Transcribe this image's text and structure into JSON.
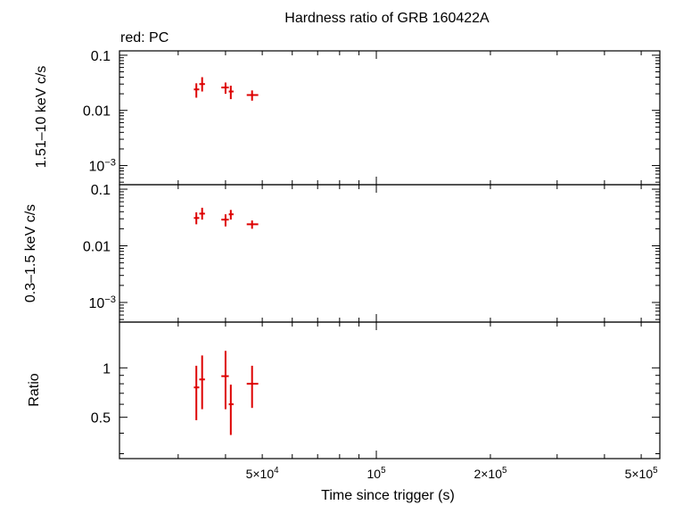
{
  "chart_data": {
    "type": "scatter",
    "title": "Hardness ratio of GRB 160422A",
    "legend": "red: PC",
    "xlabel": "Time since trigger (s)",
    "xscale": "log",
    "xlim": [
      21000,
      560000
    ],
    "x_ticks": [
      {
        "value": 50000,
        "mant": "5×10",
        "exp": "4"
      },
      {
        "value": 100000,
        "mant": "10",
        "exp": "5"
      },
      {
        "value": 200000,
        "mant": "2×10",
        "exp": "5"
      },
      {
        "value": 500000,
        "mant": "5×10",
        "exp": "5"
      }
    ],
    "series_color": "#dd0000",
    "panels": [
      {
        "id": "hard",
        "ylabel": "1.51–10 keV c/s",
        "yscale": "log",
        "ylim": [
          0.00045,
          0.12
        ],
        "y_ticks": [
          {
            "value": 0.1,
            "label": "0.1"
          },
          {
            "value": 0.01,
            "label": "0.01"
          },
          {
            "value": 0.001,
            "mant": "10",
            "exp": "−3"
          }
        ],
        "points": [
          {
            "x": 33500,
            "xlo": 33000,
            "xhi": 34100,
            "y": 0.024,
            "ylo": 0.017,
            "yhi": 0.031
          },
          {
            "x": 34700,
            "xlo": 34100,
            "xhi": 35300,
            "y": 0.03,
            "ylo": 0.022,
            "yhi": 0.04
          },
          {
            "x": 40000,
            "xlo": 39000,
            "xhi": 40800,
            "y": 0.026,
            "ylo": 0.02,
            "yhi": 0.032
          },
          {
            "x": 41300,
            "xlo": 40800,
            "xhi": 42000,
            "y": 0.022,
            "ylo": 0.016,
            "yhi": 0.028
          },
          {
            "x": 47000,
            "xlo": 45500,
            "xhi": 48800,
            "y": 0.019,
            "ylo": 0.015,
            "yhi": 0.023
          }
        ]
      },
      {
        "id": "soft",
        "ylabel": "0.3–1.5 keV c/s",
        "yscale": "log",
        "ylim": [
          0.00045,
          0.12
        ],
        "y_ticks": [
          {
            "value": 0.1,
            "label": "0.1"
          },
          {
            "value": 0.01,
            "label": "0.01"
          },
          {
            "value": 0.001,
            "mant": "10",
            "exp": "−3"
          }
        ],
        "points": [
          {
            "x": 33500,
            "xlo": 33000,
            "xhi": 34100,
            "y": 0.031,
            "ylo": 0.024,
            "yhi": 0.039
          },
          {
            "x": 34700,
            "xlo": 34100,
            "xhi": 35300,
            "y": 0.037,
            "ylo": 0.029,
            "yhi": 0.047
          },
          {
            "x": 40000,
            "xlo": 39000,
            "xhi": 40800,
            "y": 0.029,
            "ylo": 0.022,
            "yhi": 0.036
          },
          {
            "x": 41300,
            "xlo": 40800,
            "xhi": 42000,
            "y": 0.036,
            "ylo": 0.029,
            "yhi": 0.043
          },
          {
            "x": 47000,
            "xlo": 45500,
            "xhi": 48800,
            "y": 0.024,
            "ylo": 0.02,
            "yhi": 0.028
          }
        ]
      },
      {
        "id": "ratio",
        "ylabel": "Ratio",
        "yscale": "log",
        "ylim": [
          0.28,
          1.9
        ],
        "y_ticks": [
          {
            "value": 1,
            "label": "1"
          },
          {
            "value": 0.5,
            "label": "0.5"
          }
        ],
        "points": [
          {
            "x": 33500,
            "xlo": 33000,
            "xhi": 34100,
            "y": 0.76,
            "ylo": 0.48,
            "yhi": 1.03
          },
          {
            "x": 34700,
            "xlo": 34100,
            "xhi": 35300,
            "y": 0.85,
            "ylo": 0.56,
            "yhi": 1.19
          },
          {
            "x": 40000,
            "xlo": 39000,
            "xhi": 40800,
            "y": 0.89,
            "ylo": 0.56,
            "yhi": 1.27
          },
          {
            "x": 41300,
            "xlo": 40800,
            "xhi": 42000,
            "y": 0.6,
            "ylo": 0.39,
            "yhi": 0.79
          },
          {
            "x": 47000,
            "xlo": 45500,
            "xhi": 48800,
            "y": 0.8,
            "ylo": 0.57,
            "yhi": 1.03
          }
        ]
      }
    ]
  }
}
